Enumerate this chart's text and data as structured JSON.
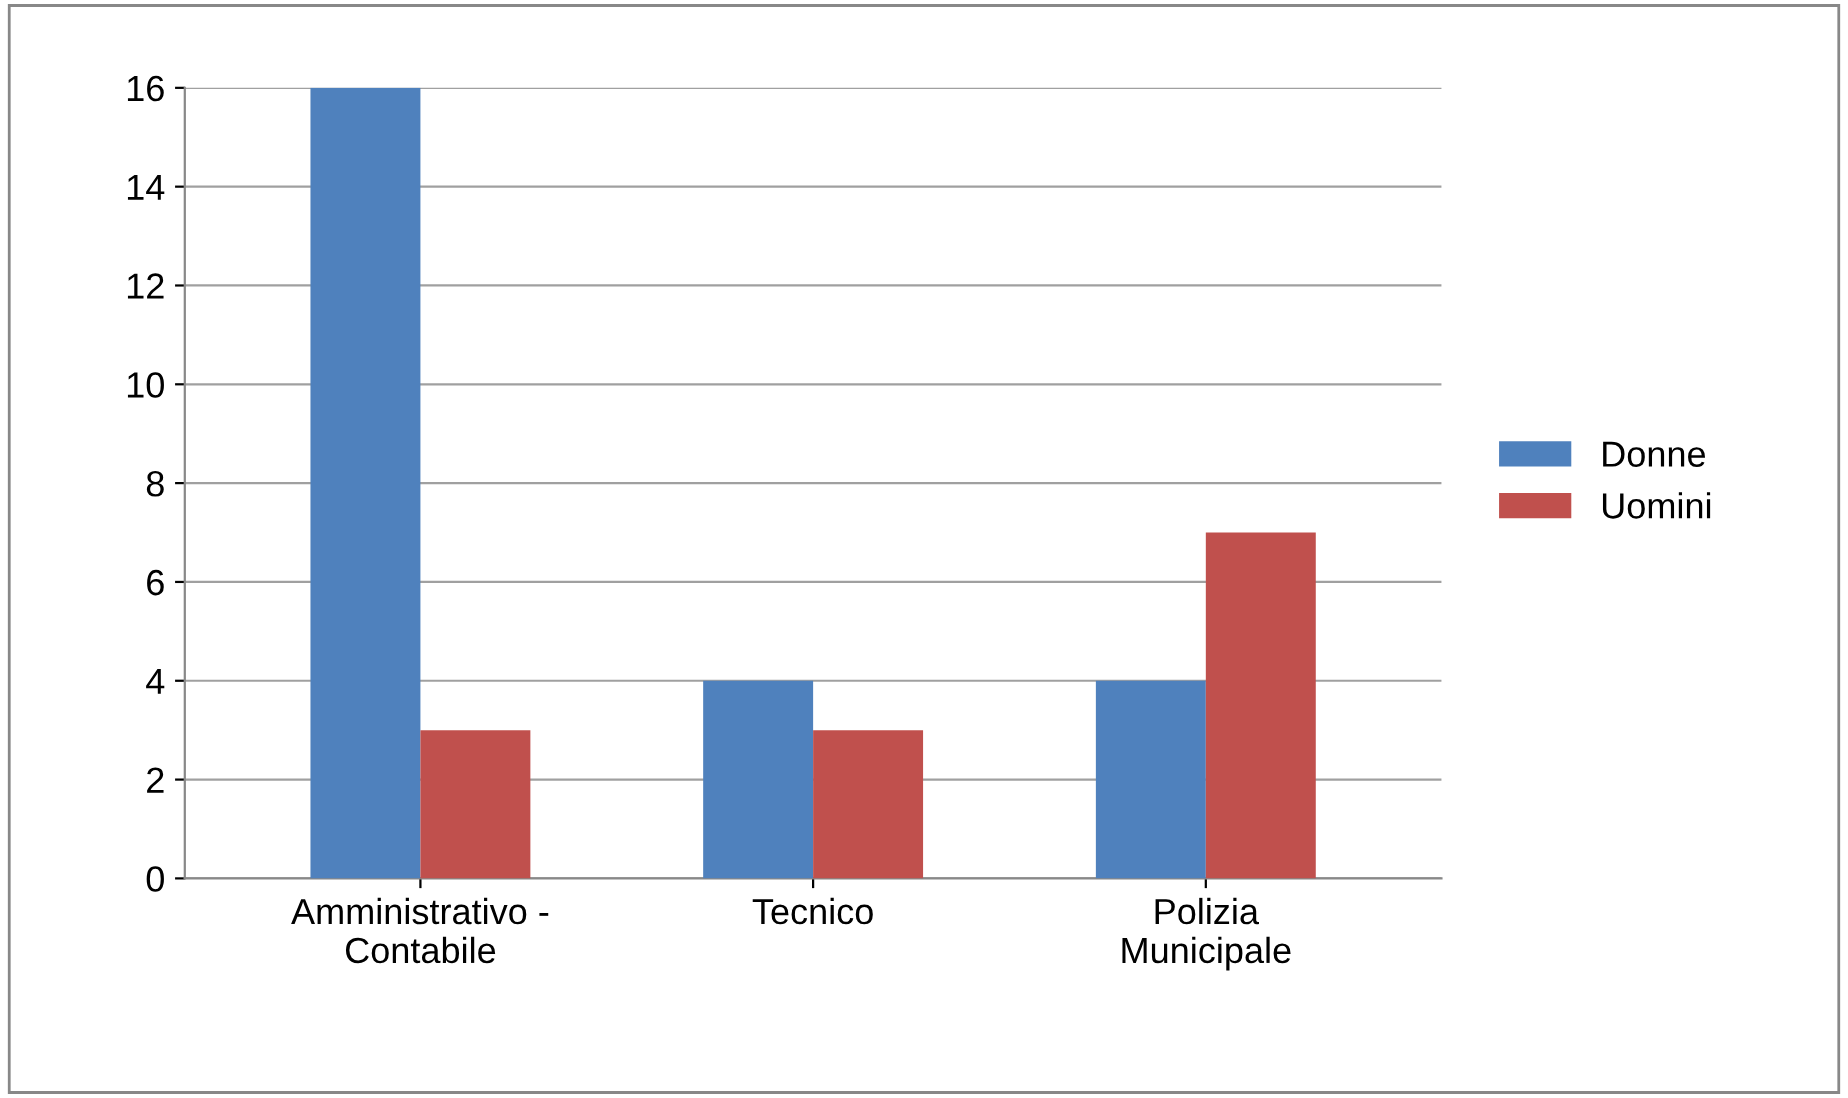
{
  "chart_data": {
    "type": "bar",
    "categories": [
      "Amministrativo - Contabile",
      "Tecnico",
      "Polizia Municipale"
    ],
    "series": [
      {
        "name": "Donne",
        "color": "#4f81bd",
        "values": [
          16,
          4,
          4
        ]
      },
      {
        "name": "Uomini",
        "color": "#c0504d",
        "values": [
          3,
          3,
          7
        ]
      }
    ],
    "ylim": [
      0,
      16
    ],
    "yticks": [
      0,
      2,
      4,
      6,
      8,
      10,
      12,
      14,
      16
    ],
    "grid": "y",
    "legend": "right"
  }
}
